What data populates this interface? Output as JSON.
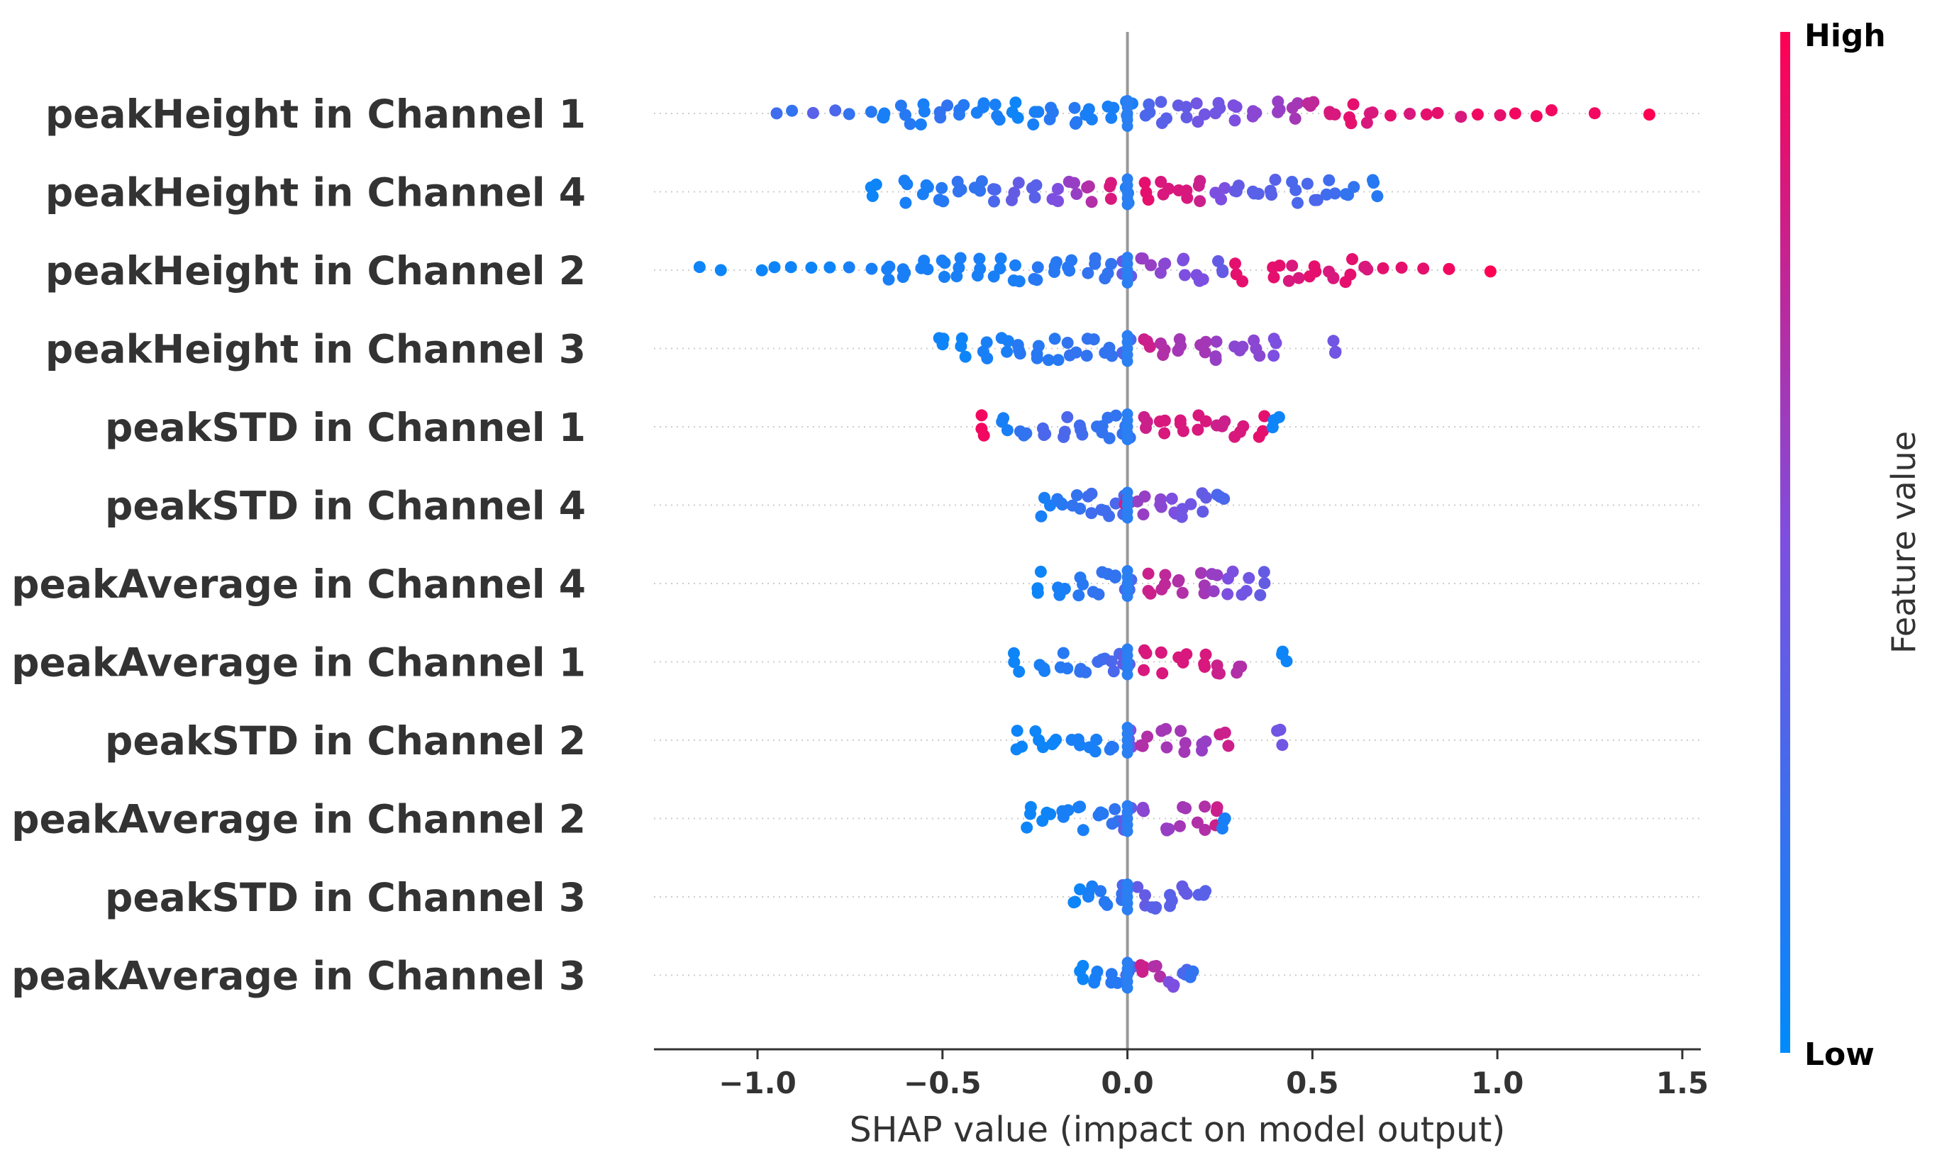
{
  "chart_data": {
    "type": "scatter",
    "subtype": "shap-beeswarm",
    "xlabel": "SHAP value (impact on model output)",
    "xlim": [
      -1.28,
      1.55
    ],
    "xticks": [
      -1.0,
      -0.5,
      0.0,
      0.5,
      1.0,
      1.5
    ],
    "xtick_labels": [
      "−1.0",
      "−0.5",
      "0.0",
      "0.5",
      "1.0",
      "1.5"
    ],
    "zero_line": 0.0,
    "grid": false,
    "colorbar": {
      "title": "Feature value",
      "high_label": "High",
      "low_label": "Low",
      "low_color": "#008bfb",
      "high_color": "#ff0052"
    },
    "features": [
      {
        "name": "peakHeight in Channel 1",
        "points": [
          {
            "x": -0.95,
            "v": 0.25
          },
          {
            "x": -0.9,
            "v": 0.2
          },
          {
            "x": -0.85,
            "v": 0.35
          },
          {
            "x": -0.8,
            "v": 0.3
          },
          {
            "x": -0.75,
            "v": 0.2
          },
          {
            "x": -0.7,
            "v": 0.15
          },
          {
            "x": -0.65,
            "v": 0.1
          },
          {
            "x": -0.6,
            "v": 0.15
          },
          {
            "x": -0.55,
            "v": 0.1
          },
          {
            "x": -0.5,
            "v": 0.2
          },
          {
            "x": -0.45,
            "v": 0.15
          },
          {
            "x": -0.4,
            "v": 0.1
          },
          {
            "x": -0.35,
            "v": 0.1
          },
          {
            "x": -0.3,
            "v": 0.05
          },
          {
            "x": -0.25,
            "v": 0.1
          },
          {
            "x": -0.2,
            "v": 0.15
          },
          {
            "x": -0.15,
            "v": 0.15
          },
          {
            "x": -0.1,
            "v": 0.1
          },
          {
            "x": -0.05,
            "v": 0.1
          },
          {
            "x": 0.0,
            "v": 0.1
          },
          {
            "x": 0.05,
            "v": 0.3
          },
          {
            "x": 0.1,
            "v": 0.35
          },
          {
            "x": 0.15,
            "v": 0.4
          },
          {
            "x": 0.2,
            "v": 0.45
          },
          {
            "x": 0.25,
            "v": 0.45
          },
          {
            "x": 0.3,
            "v": 0.5
          },
          {
            "x": 0.35,
            "v": 0.55
          },
          {
            "x": 0.4,
            "v": 0.6
          },
          {
            "x": 0.45,
            "v": 0.65
          },
          {
            "x": 0.5,
            "v": 0.75
          },
          {
            "x": 0.55,
            "v": 0.85
          },
          {
            "x": 0.6,
            "v": 0.9
          },
          {
            "x": 0.65,
            "v": 0.85
          },
          {
            "x": 0.7,
            "v": 0.9
          },
          {
            "x": 0.75,
            "v": 0.85
          },
          {
            "x": 0.8,
            "v": 0.9
          },
          {
            "x": 0.85,
            "v": 0.9
          },
          {
            "x": 0.9,
            "v": 0.85
          },
          {
            "x": 0.95,
            "v": 0.95
          },
          {
            "x": 1.0,
            "v": 0.9
          },
          {
            "x": 1.05,
            "v": 0.95
          },
          {
            "x": 1.1,
            "v": 0.95
          },
          {
            "x": 1.15,
            "v": 0.95
          },
          {
            "x": 1.25,
            "v": 0.95
          },
          {
            "x": 1.42,
            "v": 1.0
          }
        ]
      },
      {
        "name": "peakHeight in Channel 4",
        "points": [
          {
            "x": -0.68,
            "v": 0.05
          },
          {
            "x": -0.6,
            "v": 0.1
          },
          {
            "x": -0.55,
            "v": 0.1
          },
          {
            "x": -0.5,
            "v": 0.15
          },
          {
            "x": -0.45,
            "v": 0.2
          },
          {
            "x": -0.4,
            "v": 0.2
          },
          {
            "x": -0.35,
            "v": 0.3
          },
          {
            "x": -0.3,
            "v": 0.4
          },
          {
            "x": -0.25,
            "v": 0.35
          },
          {
            "x": -0.2,
            "v": 0.5
          },
          {
            "x": -0.15,
            "v": 0.6
          },
          {
            "x": -0.1,
            "v": 0.7
          },
          {
            "x": -0.05,
            "v": 0.85
          },
          {
            "x": 0.0,
            "v": 0.1
          },
          {
            "x": 0.05,
            "v": 0.9
          },
          {
            "x": 0.1,
            "v": 0.85
          },
          {
            "x": 0.15,
            "v": 0.85
          },
          {
            "x": 0.2,
            "v": 0.8
          },
          {
            "x": 0.25,
            "v": 0.5
          },
          {
            "x": 0.3,
            "v": 0.4
          },
          {
            "x": 0.35,
            "v": 0.35
          },
          {
            "x": 0.4,
            "v": 0.35
          },
          {
            "x": 0.45,
            "v": 0.3
          },
          {
            "x": 0.5,
            "v": 0.3
          },
          {
            "x": 0.55,
            "v": 0.25
          },
          {
            "x": 0.6,
            "v": 0.2
          },
          {
            "x": 0.67,
            "v": 0.15
          }
        ]
      },
      {
        "name": "peakHeight in Channel 2",
        "points": [
          {
            "x": -1.15,
            "v": 0.05
          },
          {
            "x": -1.1,
            "v": 0.05
          },
          {
            "x": -1.0,
            "v": 0.05
          },
          {
            "x": -0.95,
            "v": 0.05
          },
          {
            "x": -0.9,
            "v": 0.05
          },
          {
            "x": -0.85,
            "v": 0.05
          },
          {
            "x": -0.8,
            "v": 0.05
          },
          {
            "x": -0.75,
            "v": 0.1
          },
          {
            "x": -0.7,
            "v": 0.1
          },
          {
            "x": -0.65,
            "v": 0.1
          },
          {
            "x": -0.6,
            "v": 0.1
          },
          {
            "x": -0.55,
            "v": 0.1
          },
          {
            "x": -0.5,
            "v": 0.1
          },
          {
            "x": -0.45,
            "v": 0.1
          },
          {
            "x": -0.4,
            "v": 0.1
          },
          {
            "x": -0.35,
            "v": 0.1
          },
          {
            "x": -0.3,
            "v": 0.1
          },
          {
            "x": -0.25,
            "v": 0.15
          },
          {
            "x": -0.2,
            "v": 0.15
          },
          {
            "x": -0.15,
            "v": 0.15
          },
          {
            "x": -0.1,
            "v": 0.2
          },
          {
            "x": -0.05,
            "v": 0.2
          },
          {
            "x": 0.0,
            "v": 0.4
          },
          {
            "x": 0.05,
            "v": 0.6
          },
          {
            "x": 0.1,
            "v": 0.55
          },
          {
            "x": 0.15,
            "v": 0.5
          },
          {
            "x": 0.2,
            "v": 0.5
          },
          {
            "x": 0.25,
            "v": 0.4
          },
          {
            "x": 0.3,
            "v": 0.9
          },
          {
            "x": 0.4,
            "v": 0.9
          },
          {
            "x": 0.45,
            "v": 0.85
          },
          {
            "x": 0.5,
            "v": 0.9
          },
          {
            "x": 0.55,
            "v": 0.85
          },
          {
            "x": 0.6,
            "v": 0.9
          },
          {
            "x": 0.65,
            "v": 0.85
          },
          {
            "x": 0.7,
            "v": 0.9
          },
          {
            "x": 0.75,
            "v": 0.9
          },
          {
            "x": 0.8,
            "v": 0.9
          },
          {
            "x": 0.88,
            "v": 0.95
          },
          {
            "x": 0.99,
            "v": 1.0
          }
        ]
      },
      {
        "name": "peakHeight in Channel 3",
        "points": [
          {
            "x": -0.5,
            "v": 0.05
          },
          {
            "x": -0.45,
            "v": 0.05
          },
          {
            "x": -0.38,
            "v": 0.1
          },
          {
            "x": -0.33,
            "v": 0.1
          },
          {
            "x": -0.3,
            "v": 0.15
          },
          {
            "x": -0.25,
            "v": 0.15
          },
          {
            "x": -0.2,
            "v": 0.15
          },
          {
            "x": -0.15,
            "v": 0.2
          },
          {
            "x": -0.1,
            "v": 0.2
          },
          {
            "x": -0.05,
            "v": 0.2
          },
          {
            "x": 0.0,
            "v": 0.3
          },
          {
            "x": 0.05,
            "v": 0.8
          },
          {
            "x": 0.1,
            "v": 0.7
          },
          {
            "x": 0.15,
            "v": 0.65
          },
          {
            "x": 0.2,
            "v": 0.65
          },
          {
            "x": 0.25,
            "v": 0.6
          },
          {
            "x": 0.3,
            "v": 0.55
          },
          {
            "x": 0.35,
            "v": 0.55
          },
          {
            "x": 0.39,
            "v": 0.5
          },
          {
            "x": 0.55,
            "v": 0.45
          }
        ]
      },
      {
        "name": "peakSTD in Channel 1",
        "points": [
          {
            "x": -0.39,
            "v": 0.95
          },
          {
            "x": -0.33,
            "v": 0.1
          },
          {
            "x": -0.28,
            "v": 0.2
          },
          {
            "x": -0.22,
            "v": 0.3
          },
          {
            "x": -0.17,
            "v": 0.3
          },
          {
            "x": -0.12,
            "v": 0.25
          },
          {
            "x": -0.08,
            "v": 0.2
          },
          {
            "x": -0.04,
            "v": 0.2
          },
          {
            "x": 0.0,
            "v": 0.2
          },
          {
            "x": 0.05,
            "v": 0.8
          },
          {
            "x": 0.1,
            "v": 0.85
          },
          {
            "x": 0.15,
            "v": 0.85
          },
          {
            "x": 0.2,
            "v": 0.85
          },
          {
            "x": 0.25,
            "v": 0.8
          },
          {
            "x": 0.3,
            "v": 0.85
          },
          {
            "x": 0.36,
            "v": 0.9
          },
          {
            "x": 0.4,
            "v": 0.05
          }
        ]
      },
      {
        "name": "peakSTD in Channel 4",
        "points": [
          {
            "x": -0.22,
            "v": 0.1
          },
          {
            "x": -0.18,
            "v": 0.15
          },
          {
            "x": -0.14,
            "v": 0.2
          },
          {
            "x": -0.1,
            "v": 0.25
          },
          {
            "x": -0.06,
            "v": 0.25
          },
          {
            "x": -0.02,
            "v": 0.3
          },
          {
            "x": 0.0,
            "v": 0.8
          },
          {
            "x": 0.04,
            "v": 0.6
          },
          {
            "x": 0.08,
            "v": 0.55
          },
          {
            "x": 0.12,
            "v": 0.5
          },
          {
            "x": 0.16,
            "v": 0.45
          },
          {
            "x": 0.2,
            "v": 0.4
          },
          {
            "x": 0.25,
            "v": 0.3
          }
        ]
      },
      {
        "name": "peakAverage in Channel 4",
        "points": [
          {
            "x": -0.23,
            "v": 0.05
          },
          {
            "x": -0.18,
            "v": 0.1
          },
          {
            "x": -0.13,
            "v": 0.15
          },
          {
            "x": -0.08,
            "v": 0.2
          },
          {
            "x": -0.04,
            "v": 0.2
          },
          {
            "x": 0.0,
            "v": 0.3
          },
          {
            "x": 0.05,
            "v": 0.8
          },
          {
            "x": 0.1,
            "v": 0.75
          },
          {
            "x": 0.15,
            "v": 0.7
          },
          {
            "x": 0.2,
            "v": 0.65
          },
          {
            "x": 0.24,
            "v": 0.6
          },
          {
            "x": 0.28,
            "v": 0.5
          },
          {
            "x": 0.32,
            "v": 0.45
          },
          {
            "x": 0.36,
            "v": 0.4
          }
        ]
      },
      {
        "name": "peakAverage in Channel 1",
        "points": [
          {
            "x": -0.3,
            "v": 0.05
          },
          {
            "x": -0.23,
            "v": 0.1
          },
          {
            "x": -0.17,
            "v": 0.15
          },
          {
            "x": -0.12,
            "v": 0.2
          },
          {
            "x": -0.07,
            "v": 0.25
          },
          {
            "x": -0.03,
            "v": 0.3
          },
          {
            "x": 0.0,
            "v": 0.4
          },
          {
            "x": 0.05,
            "v": 0.85
          },
          {
            "x": 0.1,
            "v": 0.85
          },
          {
            "x": 0.15,
            "v": 0.85
          },
          {
            "x": 0.2,
            "v": 0.85
          },
          {
            "x": 0.25,
            "v": 0.8
          },
          {
            "x": 0.3,
            "v": 0.7
          },
          {
            "x": 0.43,
            "v": 0.05
          }
        ]
      },
      {
        "name": "peakSTD in Channel 2",
        "points": [
          {
            "x": -0.29,
            "v": 0.05
          },
          {
            "x": -0.24,
            "v": 0.05
          },
          {
            "x": -0.19,
            "v": 0.05
          },
          {
            "x": -0.14,
            "v": 0.1
          },
          {
            "x": -0.09,
            "v": 0.1
          },
          {
            "x": -0.04,
            "v": 0.15
          },
          {
            "x": 0.0,
            "v": 0.5
          },
          {
            "x": 0.05,
            "v": 0.7
          },
          {
            "x": 0.1,
            "v": 0.65
          },
          {
            "x": 0.15,
            "v": 0.65
          },
          {
            "x": 0.2,
            "v": 0.6
          },
          {
            "x": 0.26,
            "v": 0.8
          },
          {
            "x": 0.41,
            "v": 0.45
          }
        ]
      },
      {
        "name": "peakAverage in Channel 2",
        "points": [
          {
            "x": -0.27,
            "v": 0.05
          },
          {
            "x": -0.22,
            "v": 0.05
          },
          {
            "x": -0.17,
            "v": 0.1
          },
          {
            "x": -0.12,
            "v": 0.1
          },
          {
            "x": -0.07,
            "v": 0.15
          },
          {
            "x": -0.03,
            "v": 0.2
          },
          {
            "x": 0.0,
            "v": 0.4
          },
          {
            "x": 0.05,
            "v": 0.55
          },
          {
            "x": 0.1,
            "v": 0.6
          },
          {
            "x": 0.15,
            "v": 0.65
          },
          {
            "x": 0.2,
            "v": 0.7
          },
          {
            "x": 0.25,
            "v": 0.8
          },
          {
            "x": 0.27,
            "v": 0.1
          }
        ]
      },
      {
        "name": "peakSTD in Channel 3",
        "points": [
          {
            "x": -0.14,
            "v": 0.05
          },
          {
            "x": -0.1,
            "v": 0.1
          },
          {
            "x": -0.06,
            "v": 0.15
          },
          {
            "x": -0.02,
            "v": 0.2
          },
          {
            "x": 0.0,
            "v": 0.3
          },
          {
            "x": 0.04,
            "v": 0.4
          },
          {
            "x": 0.08,
            "v": 0.35
          },
          {
            "x": 0.12,
            "v": 0.35
          },
          {
            "x": 0.16,
            "v": 0.4
          },
          {
            "x": 0.2,
            "v": 0.35
          }
        ]
      },
      {
        "name": "peakAverage in Channel 3",
        "points": [
          {
            "x": -0.12,
            "v": 0.05
          },
          {
            "x": -0.08,
            "v": 0.1
          },
          {
            "x": -0.04,
            "v": 0.15
          },
          {
            "x": 0.0,
            "v": 0.3
          },
          {
            "x": 0.04,
            "v": 0.8
          },
          {
            "x": 0.08,
            "v": 0.7
          },
          {
            "x": 0.12,
            "v": 0.5
          },
          {
            "x": 0.16,
            "v": 0.3
          },
          {
            "x": 0.18,
            "v": 0.2
          }
        ]
      }
    ]
  }
}
